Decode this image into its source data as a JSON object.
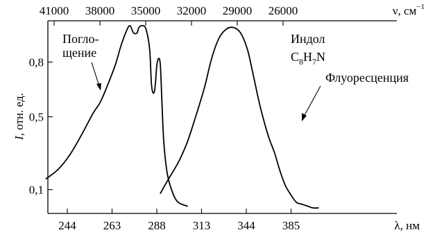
{
  "chart_data": {
    "type": "line",
    "ylabel": "I, отн. ед.",
    "ylabel_italic": "I",
    "ylabel_rest": ", отн. ед.",
    "bottom_axis": {
      "label": "λ, нм",
      "ticks": [
        244,
        263,
        288,
        313,
        344,
        385
      ]
    },
    "top_axis": {
      "label": "ν, см",
      "label_sup": "−1",
      "ticks": [
        41000,
        38000,
        35000,
        32000,
        29000,
        26000
      ]
    },
    "y_ticks": [
      {
        "value": 0.1,
        "label": "0,1"
      },
      {
        "value": 0.5,
        "label": "0,5"
      },
      {
        "value": 0.8,
        "label": "0,8"
      }
    ],
    "ylim": [
      0.0,
      1.0
    ],
    "grid": false,
    "series": [
      {
        "name": "Поглощение",
        "points": [
          [
            235,
            0.16
          ],
          [
            240,
            0.21
          ],
          [
            245,
            0.29
          ],
          [
            250,
            0.4
          ],
          [
            255,
            0.52
          ],
          [
            258,
            0.58
          ],
          [
            261,
            0.67
          ],
          [
            265,
            0.79
          ],
          [
            268,
            0.89
          ],
          [
            271,
            0.97
          ],
          [
            273,
            1.0
          ],
          [
            275,
            0.96
          ],
          [
            277,
            0.96
          ],
          [
            278,
            0.99
          ],
          [
            280,
            1.0
          ],
          [
            282,
            0.98
          ],
          [
            284,
            0.87
          ],
          [
            285,
            0.68
          ],
          [
            286,
            0.63
          ],
          [
            287,
            0.66
          ],
          [
            288,
            0.78
          ],
          [
            289,
            0.82
          ],
          [
            290,
            0.78
          ],
          [
            291,
            0.55
          ],
          [
            292,
            0.35
          ],
          [
            294,
            0.18
          ],
          [
            297,
            0.08
          ],
          [
            300,
            0.03
          ],
          [
            305,
            0.01
          ]
        ]
      },
      {
        "name": "Флуоресценция",
        "points": [
          [
            290,
            0.08
          ],
          [
            294,
            0.15
          ],
          [
            300,
            0.25
          ],
          [
            305,
            0.36
          ],
          [
            310,
            0.51
          ],
          [
            315,
            0.66
          ],
          [
            320,
            0.82
          ],
          [
            325,
            0.93
          ],
          [
            330,
            0.98
          ],
          [
            335,
            0.99
          ],
          [
            340,
            0.96
          ],
          [
            345,
            0.87
          ],
          [
            350,
            0.74
          ],
          [
            355,
            0.6
          ],
          [
            360,
            0.48
          ],
          [
            365,
            0.38
          ],
          [
            370,
            0.3
          ],
          [
            375,
            0.2
          ],
          [
            380,
            0.12
          ],
          [
            385,
            0.07
          ],
          [
            390,
            0.03
          ],
          [
            395,
            0.02
          ],
          [
            400,
            0.01
          ],
          [
            405,
            0.0
          ],
          [
            410,
            0.0
          ]
        ]
      }
    ],
    "annotations": [
      {
        "name": "absorption",
        "lines": [
          "Погло-",
          "щение"
        ]
      },
      {
        "name": "compound",
        "line1": "Индол",
        "formula": {
          "c": "C",
          "c_sub": "8",
          "h": "H",
          "h_sub": "7",
          "n": "N"
        }
      },
      {
        "name": "fluorescence",
        "lines": [
          "Флуоресценция"
        ]
      }
    ]
  }
}
